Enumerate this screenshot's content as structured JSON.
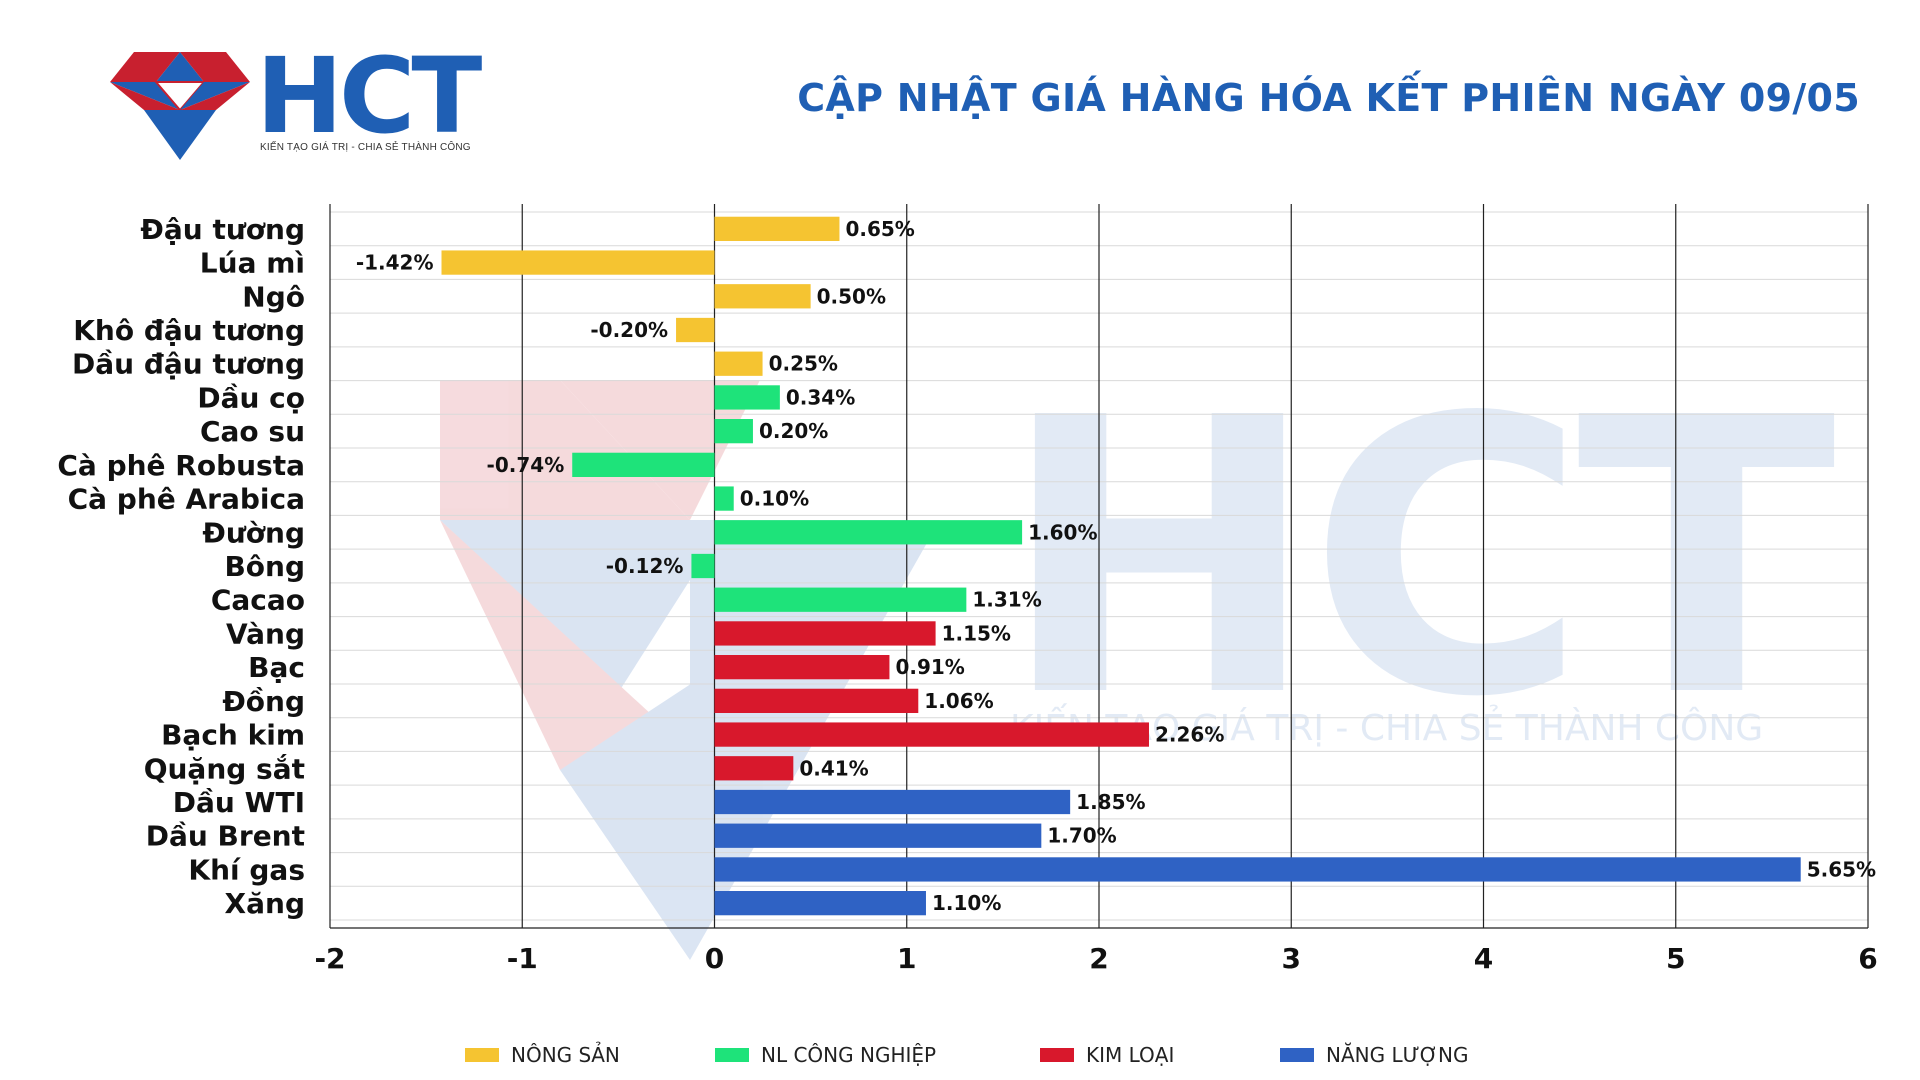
{
  "header": {
    "logo_text": "HCT",
    "logo_tagline": "KIẾN TẠO GIÁ TRỊ - CHIA SẺ THÀNH CÔNG",
    "title": "CẬP NHẬT GIÁ HÀNG HÓA KẾT PHIÊN NGÀY 09/05"
  },
  "watermark": {
    "text": "HCT",
    "tagline": "KIẾN TẠO GIÁ TRỊ - CHIA SẺ THÀNH CÔNG"
  },
  "colors": {
    "brand": "#1f5fb4",
    "logo_red": "#c8202f",
    "nong_san": "#f5c431",
    "nl_cong_nghiep": "#1ee37a",
    "kim_loai": "#d8182c",
    "nang_luong": "#2f62c4",
    "grid": "#000000"
  },
  "legend": [
    {
      "label": "NÔNG SẢN",
      "color": "#f5c431"
    },
    {
      "label": "NL CÔNG NGHIỆP",
      "color": "#1ee37a"
    },
    {
      "label": "KIM LOẠI",
      "color": "#d8182c"
    },
    {
      "label": "NĂNG LƯỢNG",
      "color": "#2f62c4"
    }
  ],
  "chart_data": {
    "type": "bar",
    "orientation": "horizontal",
    "title": "CẬP NHẬT GIÁ HÀNG HÓA KẾT PHIÊN NGÀY 09/05",
    "xlabel": "",
    "ylabel": "",
    "xlim": [
      -2,
      6
    ],
    "xticks": [
      "-2",
      "-1",
      "0",
      "1",
      "2",
      "3",
      "4",
      "5",
      "6"
    ],
    "grid": true,
    "legend_position": "bottom",
    "categories": [
      "Đậu tương",
      "Lúa mì",
      "Ngô",
      "Khô đậu tương",
      "Dầu đậu tương",
      "Dầu cọ",
      "Cao su",
      "Cà phê Robusta",
      "Cà phê Arabica",
      "Đường",
      "Bông",
      "Cacao",
      "Vàng",
      "Bạc",
      "Đồng",
      "Bạch kim",
      "Quặng sắt",
      "Dầu WTI",
      "Dầu Brent",
      "Khí gas",
      "Xăng"
    ],
    "values": [
      0.65,
      -1.42,
      0.5,
      -0.2,
      0.25,
      0.34,
      0.2,
      -0.74,
      0.1,
      1.6,
      -0.12,
      1.31,
      1.15,
      0.91,
      1.06,
      2.26,
      0.41,
      1.85,
      1.7,
      5.65,
      1.1
    ],
    "labels": [
      "0.65%",
      "-1.42%",
      "0.50%",
      "-0.20%",
      "0.25%",
      "0.34%",
      "0.20%",
      "-0.74%",
      "0.10%",
      "1.60%",
      "-0.12%",
      "1.31%",
      "1.15%",
      "0.91%",
      "1.06%",
      "2.26%",
      "0.41%",
      "1.85%",
      "1.70%",
      "5.65%",
      "1.10%"
    ],
    "groups": [
      "NÔNG SẢN",
      "NÔNG SẢN",
      "NÔNG SẢN",
      "NÔNG SẢN",
      "NÔNG SẢN",
      "NL CÔNG NGHIỆP",
      "NL CÔNG NGHIỆP",
      "NL CÔNG NGHIỆP",
      "NL CÔNG NGHIỆP",
      "NL CÔNG NGHIỆP",
      "NL CÔNG NGHIỆP",
      "NL CÔNG NGHIỆP",
      "KIM LOẠI",
      "KIM LOẠI",
      "KIM LOẠI",
      "KIM LOẠI",
      "KIM LOẠI",
      "NĂNG LƯỢNG",
      "NĂNG LƯỢNG",
      "NĂNG LƯỢNG",
      "NĂNG LƯỢNG"
    ]
  }
}
